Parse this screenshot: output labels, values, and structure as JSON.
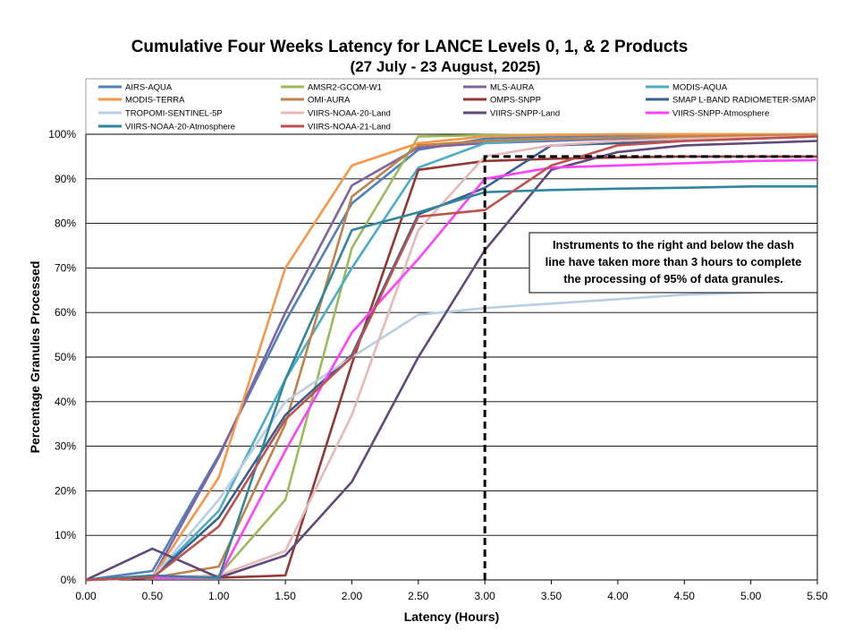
{
  "chart_data": {
    "type": "line",
    "title": "Cumulative Four Weeks Latency  for LANCE Levels 0, 1, & 2 Products",
    "subtitle": "(27  July   -  23  August,  2025)",
    "xlabel": "Latency (Hours)",
    "ylabel": "Percentage Granules Processed",
    "xlim": [
      0,
      5.5
    ],
    "ylim": [
      0,
      100
    ],
    "x_ticks": [
      "0.00",
      "0.50",
      "1.00",
      "1.50",
      "2.00",
      "2.50",
      "3.00",
      "3.50",
      "4.00",
      "4.50",
      "5.00",
      "5.50"
    ],
    "y_ticks": [
      "0%",
      "10%",
      "20%",
      "30%",
      "40%",
      "50%",
      "60%",
      "70%",
      "80%",
      "90%",
      "100%"
    ],
    "grid": "horizontal",
    "legend_position": "top",
    "x": [
      0,
      0.5,
      1.0,
      1.5,
      2.0,
      2.5,
      3.0,
      3.5,
      4.0,
      4.5,
      5.0,
      5.5
    ],
    "series": [
      {
        "name": "AIRS-AQUA",
        "color": "#4f81bd",
        "values": [
          0,
          2,
          28,
          58,
          84.5,
          96.5,
          99,
          99.5,
          99.7,
          99.8,
          99.9,
          100
        ]
      },
      {
        "name": "AMSR2-GCOM-W1",
        "color": "#9bbb59",
        "values": [
          0,
          0.5,
          1,
          18,
          74.5,
          99.5,
          99.8,
          99.9,
          100,
          100,
          100,
          100
        ]
      },
      {
        "name": "MLS-AURA",
        "color": "#8064a2",
        "values": [
          0,
          0.5,
          27.5,
          60,
          88.5,
          97,
          98,
          98.5,
          99,
          99.3,
          99.6,
          100
        ]
      },
      {
        "name": "MODIS-AQUA",
        "color": "#4bacc6",
        "values": [
          0,
          0.5,
          15.5,
          45,
          70,
          92.5,
          98,
          98.8,
          99.2,
          99.5,
          99.8,
          100
        ]
      },
      {
        "name": "MODIS-TERRA",
        "color": "#f79646",
        "values": [
          0,
          0.5,
          23,
          70,
          93,
          98,
          99.5,
          99.8,
          100,
          100,
          100,
          100
        ]
      },
      {
        "name": "OMI-AURA",
        "color": "#c0824a",
        "values": [
          0,
          0.5,
          3,
          35,
          86,
          97.5,
          98.5,
          99,
          99.2,
          99.5,
          99.7,
          99.8
        ]
      },
      {
        "name": "OMPS-SNPP",
        "color": "#943634",
        "values": [
          0,
          0.5,
          0.5,
          1,
          48.5,
          92,
          94,
          94.5,
          94.8,
          95,
          95,
          95
        ]
      },
      {
        "name": "SMAP L-BAND RADIOMETER-SMAP",
        "color": "#376092",
        "values": [
          0,
          0.5,
          14,
          37,
          50.5,
          82,
          88,
          97.5,
          98,
          98.5,
          99,
          99.5
        ]
      },
      {
        "name": "TROPOMI-SENTINEL-5P",
        "color": "#b9cde5",
        "values": [
          0,
          0.5,
          18,
          40,
          50,
          59.5,
          61,
          62,
          63,
          64,
          64.5,
          65
        ]
      },
      {
        "name": "VIIRS-NOAA-20-Land",
        "color": "#e6b9b8",
        "values": [
          0,
          0.5,
          1,
          6.5,
          37,
          78.5,
          95,
          97.5,
          98.5,
          99,
          99.3,
          99.5
        ]
      },
      {
        "name": "VIIRS-SNPP-Land",
        "color": "#604a7b",
        "values": [
          0,
          7,
          0.5,
          5.5,
          22,
          50,
          74,
          92,
          96,
          97.5,
          98,
          98.5
        ]
      },
      {
        "name": "VIIRS-SNPP-Atmosphere",
        "color": "#ff40ff",
        "values": [
          0,
          0.5,
          0.5,
          29,
          55.5,
          72,
          90,
          92.5,
          93,
          93.5,
          94,
          94.2
        ]
      },
      {
        "name": "VIIRS-NOAA-20-Atmosphere",
        "color": "#31859c",
        "values": [
          0,
          1,
          0.5,
          45,
          78.5,
          82.5,
          87,
          87.5,
          87.8,
          88,
          88.3,
          88.3
        ]
      },
      {
        "name": "VIIRS-NOAA-21-Land",
        "color": "#c0504d",
        "values": [
          0,
          0.5,
          12,
          36,
          50,
          81.5,
          83,
          93,
          97.5,
          98.5,
          99,
          99.5
        ]
      }
    ],
    "threshold_line": {
      "x": 3.0,
      "y": 95,
      "style": "dashed",
      "color": "#000000"
    },
    "annotations": [
      "Instruments to the right and below the dash",
      "line have taken more than 3 hours to complete",
      "the processing of 95% of data granules."
    ]
  }
}
